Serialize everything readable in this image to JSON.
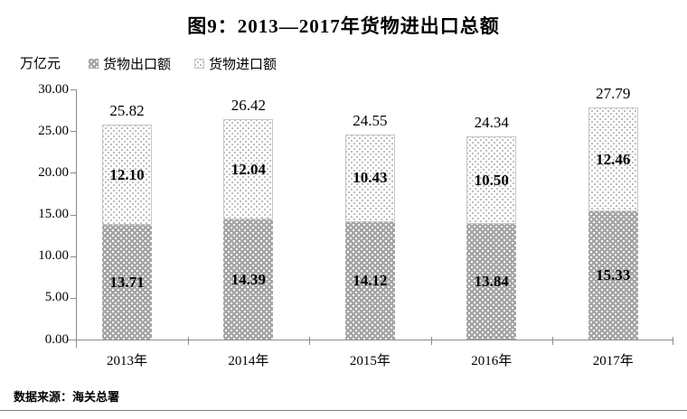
{
  "title": "图9：2013—2017年货物进出口总额",
  "unit_label": "万亿元",
  "source": "数据来源：海关总署",
  "colors": {
    "export_fill": "#a6a6a6",
    "export_dots": "#ffffff",
    "import_fill": "#ffffff",
    "import_dots": "#b3b3b3",
    "axis": "#8c8c8c",
    "text": "#000000"
  },
  "chart_data": {
    "type": "bar",
    "stacked": true,
    "title": "图9：2013—2017年货物进出口总额",
    "ylabel": "万亿元",
    "categories": [
      "2013年",
      "2014年",
      "2015年",
      "2016年",
      "2017年"
    ],
    "series": [
      {
        "name": "货物出口额",
        "values": [
          13.71,
          14.39,
          14.12,
          13.84,
          15.33
        ]
      },
      {
        "name": "货物进口额",
        "values": [
          12.1,
          12.04,
          10.43,
          10.5,
          12.46
        ]
      }
    ],
    "totals": [
      25.82,
      26.42,
      24.55,
      24.34,
      27.79
    ],
    "ylim": [
      0,
      30
    ],
    "ytick_step": 5,
    "ytick_labels": [
      "0.00",
      "5.00",
      "10.00",
      "15.00",
      "20.00",
      "25.00",
      "30.00"
    ],
    "value_decimals": 2,
    "legend_position": "top-left",
    "grid": false
  }
}
